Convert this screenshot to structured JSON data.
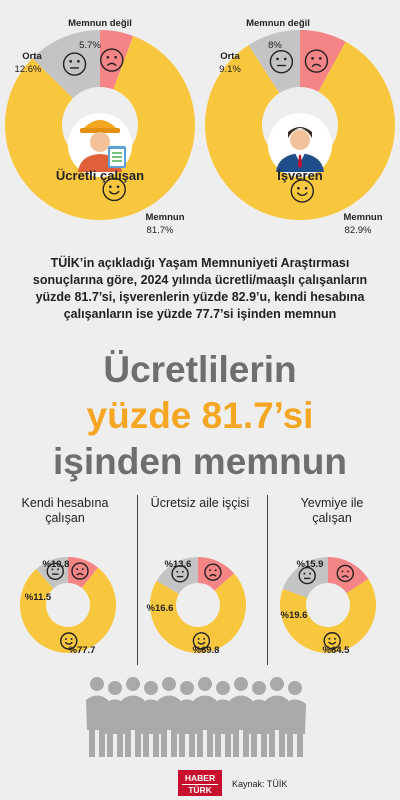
{
  "chart_data": [
    {
      "type": "pie",
      "title": "Ücretli çalışan",
      "slices": [
        {
          "label": "Memnun",
          "value": 81.7,
          "display": "81.7%",
          "color": "#f9c73e"
        },
        {
          "label": "Orta",
          "value": 12.6,
          "display": "12.6%",
          "color": "#c4c4c4"
        },
        {
          "label": "Memnun değil",
          "value": 5.7,
          "display": "5.7%",
          "color": "#f58486"
        }
      ]
    },
    {
      "type": "pie",
      "title": "İşveren",
      "slices": [
        {
          "label": "Memnun",
          "value": 82.9,
          "display": "82.9%",
          "color": "#f9c73e"
        },
        {
          "label": "Orta",
          "value": 9.1,
          "display": "9.1%",
          "color": "#c4c4c4"
        },
        {
          "label": "Memnun değil",
          "value": 8,
          "display": "8%",
          "color": "#f58486"
        }
      ]
    },
    {
      "type": "pie",
      "title": "Kendi hesabına çalışan",
      "slices": [
        {
          "label": "Memnun",
          "value": 77.7,
          "display": "%77.7",
          "color": "#f9c73e"
        },
        {
          "label": "Orta",
          "value": 11.5,
          "display": "%11.5",
          "color": "#c4c4c4"
        },
        {
          "label": "Memnun değil",
          "value": 10.8,
          "display": "%10.8",
          "color": "#f58486"
        }
      ]
    },
    {
      "type": "pie",
      "title": "Ücretsiz aile işçisi",
      "slices": [
        {
          "label": "Memnun",
          "value": 69.8,
          "display": "%69.8",
          "color": "#f9c73e"
        },
        {
          "label": "Orta",
          "value": 16.6,
          "display": "%16.6",
          "color": "#c4c4c4"
        },
        {
          "label": "Memnun değil",
          "value": 13.6,
          "display": "%13.6",
          "color": "#f58486"
        }
      ]
    },
    {
      "type": "pie",
      "title": "Yevmiye ile çalışan",
      "slices": [
        {
          "label": "Memnun",
          "value": 64.5,
          "display": "%64.5",
          "color": "#f9c73e"
        },
        {
          "label": "Orta",
          "value": 19.6,
          "display": "%19.6",
          "color": "#c4c4c4"
        },
        {
          "label": "Memnun değil",
          "value": 15.9,
          "display": "%15.9",
          "color": "#f58486"
        }
      ]
    }
  ],
  "text": {
    "top1": {
      "happy": "Memnun",
      "happy_val": "81.7%",
      "mid": "Orta",
      "mid_val": "12.6%",
      "sad": "Memnun değil",
      "sad_val": "5.7%",
      "caption": "Ücretli çalışan"
    },
    "top2": {
      "happy": "Memnun",
      "happy_val": "82.9%",
      "mid": "Orta",
      "mid_val": "9.1%",
      "sad": "Memnun değil",
      "sad_val": "8%",
      "caption": "İşveren"
    },
    "intro": "TÜİK’in açıkladığı Yaşam Memnuniyeti Araştırması sonuçlarına göre, 2024 yılında ücretli/maaşlı çalışanların yüzde 81.7’si, işverenlerin yüzde 82.9’u, kendi hesabına çalışanların ise yüzde 77.7’si işinden memnun",
    "head1": "Ücretlilerin",
    "head2": "yüzde 81.7’si",
    "head3": "işinden memnun",
    "small1_title": "Kendi hesabına çalışan",
    "small2_title": "Ücretsiz aile işçisi",
    "small3_title": "Yevmiye ile çalışan",
    "s1": {
      "sad": "%10.8",
      "mid": "%11.5",
      "happy": "%77.7"
    },
    "s2": {
      "sad": "%13.6",
      "mid": "%16.6",
      "happy": "%69.8"
    },
    "s3": {
      "sad": "%15.9",
      "mid": "%19.6",
      "happy": "%64.5"
    },
    "logo_top": "HABER",
    "logo_bottom": "TÜRK",
    "source": "Kaynak: TÜİK"
  },
  "colors": {
    "happy": "#f9c73e",
    "mid": "#c4c4c4",
    "sad": "#f58486",
    "accent": "#f5a623",
    "gray": "#6e6e6e"
  }
}
